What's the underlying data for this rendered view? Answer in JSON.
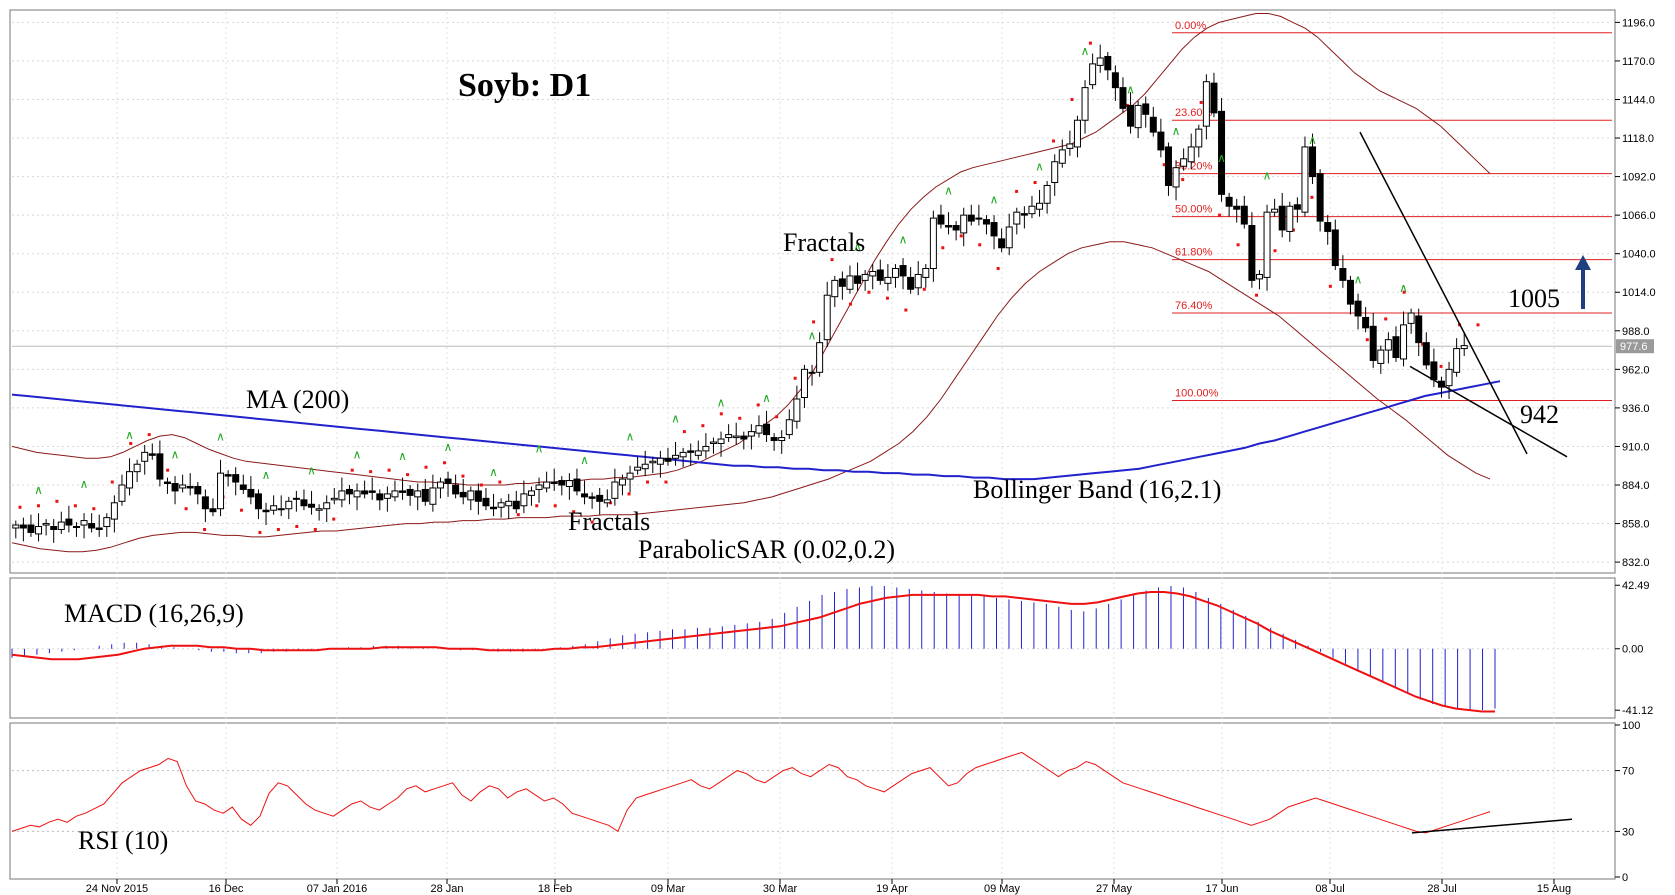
{
  "chart_data": {
    "type": "candlestick",
    "title": "Soyb: D1",
    "annotations": {
      "ma": "MA (200)",
      "fractals_top": "Fractals",
      "fractals_bottom": "Fractals",
      "bollinger": "Bollinger Band (16,2.1)",
      "sar": "ParabolicSAR (0.02,0.2)",
      "macd": "MACD (16,26,9)",
      "rsi": "RSI (10)",
      "target": "1005",
      "support": "942"
    },
    "price_axis": {
      "ylim": [
        826,
        1203
      ],
      "ticks": [
        "1196.0",
        "1170.0",
        "1144.0",
        "1118.0",
        "1092.0",
        "1066.0",
        "1040.0",
        "1014.0",
        "988.0",
        "962.0",
        "936.0",
        "910.0",
        "884.0",
        "858.0",
        "832.0"
      ],
      "current_price": "977.6"
    },
    "macd_axis": {
      "ylim": [
        -45,
        46
      ],
      "ticks": [
        "42.49",
        "0.00",
        "-41.12"
      ]
    },
    "rsi_axis": {
      "ylim": [
        0,
        100
      ],
      "ticks": [
        "100",
        "70",
        "30",
        "0"
      ]
    },
    "date_labels": [
      "24 Nov 2015",
      "16 Dec",
      "07 Jan 2016",
      "28 Jan",
      "18 Feb",
      "09 Mar",
      "30 Mar",
      "19 Apr",
      "09 May",
      "27 May",
      "17 Jun",
      "08 Jul",
      "28 Jul",
      "15 Aug"
    ],
    "fibonacci": [
      {
        "label": "0.00%",
        "price": 1189
      },
      {
        "label": "23.60%",
        "price": 1130
      },
      {
        "label": "38.20%",
        "price": 1094
      },
      {
        "label": "50.00%",
        "price": 1065
      },
      {
        "label": "61.80%",
        "price": 1036
      },
      {
        "label": "76.40%",
        "price": 1000
      },
      {
        "label": "100.00%",
        "price": 941
      }
    ],
    "colors": {
      "bollinger": "#8b1a1a",
      "ma": "#2222cc",
      "sar": "#ee1111",
      "macd_hist": "#2222cc",
      "macd_signal": "#ee1111",
      "rsi": "#ee1111",
      "fractal_up": "#22aa22",
      "fractal_down": "#ee1111",
      "fib": "#e02020",
      "arrow": "#1f3f7f"
    },
    "series": {
      "close": [
        857,
        855,
        852,
        856,
        858,
        854,
        859,
        857,
        856,
        860,
        855,
        854,
        862,
        872,
        884,
        893,
        898,
        906,
        904,
        888,
        885,
        880,
        884,
        882,
        878,
        868,
        866,
        892,
        890,
        886,
        881,
        876,
        868,
        866,
        870,
        868,
        873,
        875,
        870,
        869,
        868,
        872,
        875,
        880,
        878,
        880,
        878,
        879,
        874,
        878,
        880,
        879,
        877,
        880,
        873,
        882,
        886,
        885,
        878,
        876,
        880,
        873,
        870,
        868,
        872,
        873,
        868,
        878,
        880,
        884,
        886,
        885,
        884,
        887,
        880,
        876,
        875,
        873,
        874,
        886,
        888,
        892,
        896,
        898,
        900,
        902,
        900,
        904,
        906,
        906,
        907,
        910,
        913,
        915,
        918,
        917,
        915,
        920,
        924,
        918,
        914,
        916,
        928,
        942,
        962,
        960,
        980,
        1012,
        1022,
        1018,
        1025,
        1020,
        1026,
        1028,
        1022,
        1024,
        1030,
        1025,
        1016,
        1026,
        1030,
        1064,
        1060,
        1058,
        1056,
        1066,
        1062,
        1064,
        1060,
        1052,
        1044,
        1058,
        1068,
        1066,
        1072,
        1074,
        1086,
        1102,
        1110,
        1114,
        1130,
        1152,
        1168,
        1172,
        1164,
        1152,
        1138,
        1126,
        1140,
        1134,
        1122,
        1110,
        1086,
        1098,
        1104,
        1112,
        1124,
        1156,
        1135,
        1080,
        1072,
        1070,
        1060,
        1022,
        1026,
        1068,
        1070,
        1056,
        1072,
        1070,
        1112,
        1092,
        1062,
        1055,
        1032,
        1022,
        1006,
        998,
        990,
        968,
        975,
        982,
        970,
        992,
        1000,
        980,
        965,
        955,
        950,
        962,
        976,
        978
      ],
      "ma": [
        945,
        944,
        943,
        942,
        941,
        940,
        939,
        938,
        937,
        936,
        935,
        934,
        933,
        932,
        931,
        930,
        929,
        928,
        927,
        926,
        925,
        924,
        923,
        922,
        921,
        920,
        919,
        918,
        917,
        916,
        915,
        914,
        913,
        912,
        911,
        910,
        909,
        908,
        907,
        906,
        905,
        904,
        903,
        902,
        901,
        900,
        899,
        898,
        897,
        897,
        896,
        896,
        895,
        895,
        894,
        894,
        893,
        893,
        892,
        892,
        891,
        891,
        890,
        890,
        889,
        889,
        888,
        888,
        888,
        889,
        890,
        891,
        892,
        893,
        894,
        895,
        897,
        899,
        901,
        903,
        905,
        907,
        909,
        912,
        914,
        917,
        920,
        923,
        926,
        929,
        932,
        935,
        938,
        941,
        944,
        946,
        948,
        950,
        952,
        954
      ],
      "bb_upper": [
        910,
        908,
        906,
        905,
        904,
        903,
        902,
        902,
        903,
        906,
        910,
        914,
        917,
        918,
        916,
        912,
        908,
        905,
        902,
        900,
        899,
        898,
        897,
        896,
        895,
        894,
        893,
        892,
        891,
        890,
        889,
        888,
        887,
        886,
        886,
        885,
        885,
        884,
        884,
        884,
        884,
        885,
        885,
        886,
        886,
        887,
        887,
        888,
        888,
        889,
        889,
        890,
        891,
        892,
        894,
        897,
        900,
        904,
        908,
        912,
        918,
        924,
        930,
        938,
        948,
        960,
        975,
        990,
        1005,
        1020,
        1035,
        1048,
        1060,
        1070,
        1078,
        1085,
        1090,
        1095,
        1098,
        1100,
        1102,
        1104,
        1106,
        1108,
        1110,
        1112,
        1114,
        1118,
        1122,
        1128,
        1134,
        1140,
        1148,
        1158,
        1168,
        1178,
        1186,
        1192,
        1196,
        1198,
        1200,
        1202,
        1202,
        1200,
        1196,
        1192,
        1186,
        1178,
        1170,
        1162,
        1156,
        1150,
        1146,
        1142,
        1138,
        1132,
        1126,
        1118,
        1110,
        1102,
        1094
      ],
      "bb_lower": [
        845,
        843,
        841,
        840,
        839,
        839,
        840,
        842,
        845,
        848,
        850,
        851,
        852,
        852,
        851,
        850,
        850,
        849,
        849,
        850,
        851,
        852,
        853,
        853,
        854,
        855,
        856,
        857,
        858,
        858,
        859,
        859,
        860,
        860,
        861,
        861,
        862,
        862,
        862,
        863,
        863,
        863,
        864,
        864,
        864,
        865,
        866,
        867,
        868,
        869,
        870,
        871,
        872,
        874,
        876,
        879,
        882,
        885,
        888,
        892,
        896,
        900,
        906,
        912,
        920,
        930,
        942,
        956,
        970,
        984,
        998,
        1010,
        1020,
        1028,
        1034,
        1040,
        1044,
        1046,
        1048,
        1048,
        1046,
        1044,
        1040,
        1036,
        1032,
        1028,
        1022,
        1016,
        1010,
        1004,
        998,
        990,
        982,
        974,
        966,
        958,
        950,
        942,
        935,
        928,
        920,
        912,
        904,
        898,
        892,
        888
      ],
      "sar": [
        883,
        881,
        879,
        877,
        875,
        873,
        871,
        869,
        868,
        872,
        876,
        880,
        884,
        888,
        892,
        896,
        900,
        904,
        907,
        909,
        908,
        906,
        904,
        902,
        900,
        898,
        896,
        894,
        892,
        890,
        888,
        889,
        891,
        893,
        895,
        897,
        899,
        901,
        903,
        905,
        904,
        903,
        902,
        901,
        900,
        899,
        898,
        868,
        870,
        872,
        874,
        876,
        878,
        880,
        882,
        884,
        886,
        884,
        882,
        880,
        878,
        876,
        874,
        872,
        870,
        868,
        866,
        864,
        862,
        860,
        858,
        856,
        854,
        852,
        850,
        848,
        846,
        844,
        842,
        840
      ],
      "macd_hist": [
        -6,
        -5,
        -4,
        -3,
        -2,
        -1,
        0,
        2,
        3,
        4,
        4,
        3,
        2,
        1,
        0,
        -1,
        -2,
        -2,
        -3,
        -3,
        -3,
        -2,
        -2,
        -1,
        -1,
        0,
        0,
        1,
        1,
        2,
        2,
        2,
        1,
        1,
        0,
        0,
        -1,
        -1,
        -1,
        -2,
        -2,
        -2,
        -1,
        0,
        1,
        2,
        3,
        5,
        7,
        9,
        10,
        11,
        12,
        13,
        13,
        14,
        14,
        15,
        16,
        17,
        18,
        20,
        24,
        28,
        32,
        36,
        38,
        40,
        41,
        42,
        42,
        41,
        40,
        39,
        38,
        37,
        36,
        36,
        35,
        34,
        33,
        32,
        31,
        30,
        28,
        26,
        25,
        27,
        30,
        33,
        36,
        39,
        41,
        42,
        41,
        38,
        34,
        30,
        26,
        22,
        18,
        14,
        10,
        6,
        2,
        -2,
        -6,
        -10,
        -14,
        -18,
        -22,
        -26,
        -30,
        -34,
        -37,
        -39,
        -40,
        -41,
        -41,
        -40
      ],
      "macd_signal": [
        -4,
        -5,
        -6,
        -7,
        -7,
        -7,
        -6,
        -5,
        -4,
        -2,
        0,
        1,
        2,
        2,
        2,
        1,
        1,
        0,
        0,
        -1,
        -1,
        -1,
        -1,
        -1,
        0,
        0,
        0,
        0,
        1,
        1,
        1,
        1,
        1,
        0,
        0,
        0,
        -1,
        -1,
        -1,
        -1,
        -1,
        0,
        0,
        1,
        1,
        2,
        3,
        4,
        5,
        6,
        7,
        8,
        9,
        10,
        11,
        12,
        13,
        14,
        15,
        17,
        19,
        21,
        24,
        27,
        30,
        32,
        34,
        35,
        36,
        36,
        36,
        36,
        36,
        36,
        35,
        35,
        34,
        33,
        32,
        31,
        30,
        30,
        31,
        33,
        35,
        37,
        38,
        38,
        37,
        35,
        32,
        29,
        25,
        21,
        17,
        12,
        8,
        4,
        0,
        -4,
        -8,
        -12,
        -16,
        -20,
        -24,
        -28,
        -32,
        -35,
        -38,
        -40,
        -41,
        -42,
        -42
      ],
      "rsi": [
        30,
        32,
        34,
        33,
        36,
        38,
        36,
        40,
        42,
        45,
        48,
        55,
        62,
        66,
        70,
        72,
        74,
        78,
        76,
        60,
        50,
        48,
        44,
        42,
        46,
        38,
        34,
        40,
        55,
        62,
        60,
        54,
        48,
        44,
        42,
        40,
        44,
        48,
        50,
        46,
        44,
        48,
        52,
        58,
        60,
        56,
        58,
        60,
        62,
        54,
        50,
        56,
        60,
        58,
        52,
        56,
        58,
        54,
        50,
        52,
        48,
        42,
        40,
        38,
        36,
        34,
        30,
        44,
        52,
        54,
        56,
        58,
        60,
        62,
        64,
        60,
        58,
        62,
        66,
        70,
        68,
        64,
        62,
        66,
        70,
        72,
        68,
        66,
        70,
        74,
        72,
        66,
        64,
        60,
        58,
        56,
        60,
        64,
        68,
        70,
        72,
        66,
        60,
        62,
        68,
        72,
        74,
        76,
        78,
        80,
        82,
        78,
        74,
        70,
        66,
        70,
        72,
        76,
        74,
        70,
        66,
        62,
        60,
        58,
        56,
        54,
        52,
        50,
        48,
        46,
        44,
        42,
        40,
        38,
        36,
        34,
        36,
        38,
        42,
        46,
        48,
        50,
        52,
        50,
        48,
        46,
        44,
        42,
        40,
        38,
        36,
        34,
        32,
        30,
        29,
        31,
        33,
        35,
        37,
        39,
        41,
        43
      ]
    }
  }
}
